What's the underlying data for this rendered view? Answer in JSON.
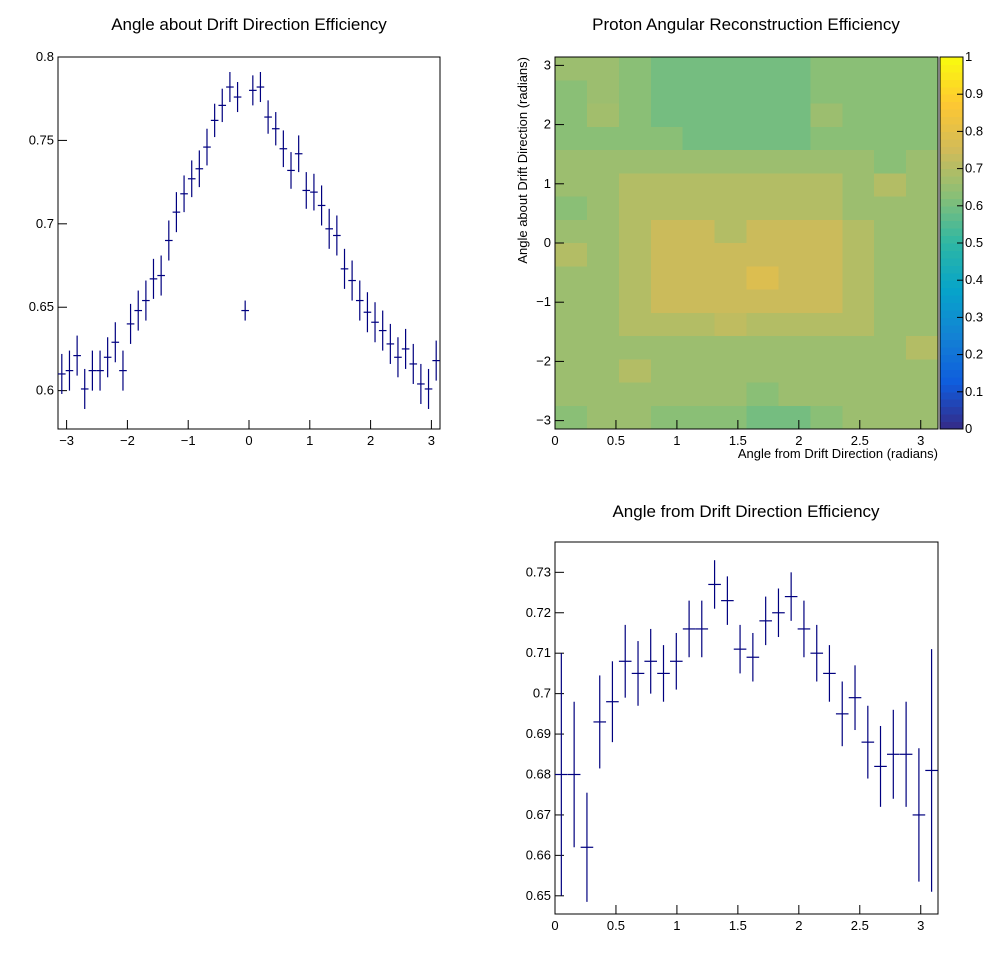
{
  "colors": {
    "marker": "#00007f",
    "frame": "#000000",
    "background": "#ffffff"
  },
  "chart_data": [
    {
      "type": "scatter",
      "title": "Angle about Drift Direction Efficiency",
      "xlabel": "",
      "ylabel": "",
      "xlim": [
        -3.14159,
        3.14159
      ],
      "ylim": [
        0.577,
        0.8
      ],
      "grid": false,
      "x_ticks": [
        -3,
        -2,
        -1,
        0,
        1,
        2,
        3
      ],
      "y_ticks": [
        0.6,
        0.65,
        0.7,
        0.75,
        0.8
      ],
      "y_tick_labels": [
        "0.6",
        "0.65",
        "0.7",
        "0.75",
        "0.8"
      ],
      "points": [
        {
          "x": -3.079,
          "y": 0.61,
          "err": 0.012
        },
        {
          "x": -2.953,
          "y": 0.612,
          "err": 0.012
        },
        {
          "x": -2.827,
          "y": 0.621,
          "err": 0.012
        },
        {
          "x": -2.702,
          "y": 0.601,
          "err": 0.012
        },
        {
          "x": -2.576,
          "y": 0.612,
          "err": 0.012
        },
        {
          "x": -2.45,
          "y": 0.612,
          "err": 0.012
        },
        {
          "x": -2.325,
          "y": 0.62,
          "err": 0.012
        },
        {
          "x": -2.199,
          "y": 0.629,
          "err": 0.012
        },
        {
          "x": -2.073,
          "y": 0.612,
          "err": 0.012
        },
        {
          "x": -1.948,
          "y": 0.64,
          "err": 0.012
        },
        {
          "x": -1.822,
          "y": 0.648,
          "err": 0.012
        },
        {
          "x": -1.696,
          "y": 0.654,
          "err": 0.012
        },
        {
          "x": -1.571,
          "y": 0.667,
          "err": 0.012
        },
        {
          "x": -1.445,
          "y": 0.669,
          "err": 0.012
        },
        {
          "x": -1.319,
          "y": 0.69,
          "err": 0.012
        },
        {
          "x": -1.194,
          "y": 0.707,
          "err": 0.012
        },
        {
          "x": -1.068,
          "y": 0.718,
          "err": 0.011
        },
        {
          "x": -0.942,
          "y": 0.727,
          "err": 0.011
        },
        {
          "x": -0.817,
          "y": 0.733,
          "err": 0.011
        },
        {
          "x": -0.691,
          "y": 0.746,
          "err": 0.011
        },
        {
          "x": -0.565,
          "y": 0.762,
          "err": 0.01
        },
        {
          "x": -0.44,
          "y": 0.771,
          "err": 0.01
        },
        {
          "x": -0.314,
          "y": 0.782,
          "err": 0.009
        },
        {
          "x": -0.188,
          "y": 0.776,
          "err": 0.009
        },
        {
          "x": -0.063,
          "y": 0.648,
          "err": 0.006
        },
        {
          "x": 0.063,
          "y": 0.78,
          "err": 0.009
        },
        {
          "x": 0.188,
          "y": 0.782,
          "err": 0.009
        },
        {
          "x": 0.314,
          "y": 0.764,
          "err": 0.01
        },
        {
          "x": 0.44,
          "y": 0.757,
          "err": 0.01
        },
        {
          "x": 0.565,
          "y": 0.745,
          "err": 0.011
        },
        {
          "x": 0.691,
          "y": 0.732,
          "err": 0.011
        },
        {
          "x": 0.817,
          "y": 0.742,
          "err": 0.011
        },
        {
          "x": 0.942,
          "y": 0.72,
          "err": 0.011
        },
        {
          "x": 1.068,
          "y": 0.719,
          "err": 0.011
        },
        {
          "x": 1.194,
          "y": 0.711,
          "err": 0.012
        },
        {
          "x": 1.319,
          "y": 0.697,
          "err": 0.012
        },
        {
          "x": 1.445,
          "y": 0.693,
          "err": 0.012
        },
        {
          "x": 1.571,
          "y": 0.673,
          "err": 0.012
        },
        {
          "x": 1.696,
          "y": 0.666,
          "err": 0.012
        },
        {
          "x": 1.822,
          "y": 0.654,
          "err": 0.012
        },
        {
          "x": 1.948,
          "y": 0.647,
          "err": 0.012
        },
        {
          "x": 2.073,
          "y": 0.641,
          "err": 0.012
        },
        {
          "x": 2.199,
          "y": 0.636,
          "err": 0.012
        },
        {
          "x": 2.325,
          "y": 0.628,
          "err": 0.012
        },
        {
          "x": 2.45,
          "y": 0.62,
          "err": 0.012
        },
        {
          "x": 2.576,
          "y": 0.625,
          "err": 0.012
        },
        {
          "x": 2.702,
          "y": 0.616,
          "err": 0.012
        },
        {
          "x": 2.827,
          "y": 0.604,
          "err": 0.012
        },
        {
          "x": 2.953,
          "y": 0.601,
          "err": 0.012
        },
        {
          "x": 3.079,
          "y": 0.618,
          "err": 0.012
        }
      ]
    },
    {
      "type": "heatmap",
      "title": "Proton Angular Reconstruction Efficiency",
      "xlabel": "Angle from Drift Direction (radians)",
      "ylabel": "Angle about Drift Direction (radians)",
      "xlim": [
        0,
        3.14159
      ],
      "ylim": [
        -3.14159,
        3.14159
      ],
      "x_ticks": [
        0,
        0.5,
        1,
        1.5,
        2,
        2.5,
        3
      ],
      "y_ticks": [
        -3,
        -2,
        -1,
        0,
        1,
        2,
        3
      ],
      "y_tick_labels": [
        "−3",
        "−2",
        "−1",
        "0",
        "1",
        "2",
        "3"
      ],
      "z_range": [
        0,
        1
      ],
      "z_ticks": [
        0,
        0.1,
        0.2,
        0.3,
        0.4,
        0.5,
        0.6,
        0.7,
        0.8,
        0.9,
        1
      ],
      "nx": 12,
      "ny": 16,
      "z_rows_top_to_bottom": [
        [
          0.66,
          0.66,
          0.63,
          0.6,
          0.6,
          0.6,
          0.6,
          0.6,
          0.63,
          0.63,
          0.63,
          0.63
        ],
        [
          0.63,
          0.66,
          0.63,
          0.6,
          0.6,
          0.6,
          0.6,
          0.6,
          0.63,
          0.63,
          0.63,
          0.63
        ],
        [
          0.63,
          0.67,
          0.63,
          0.6,
          0.6,
          0.6,
          0.6,
          0.6,
          0.66,
          0.63,
          0.63,
          0.63
        ],
        [
          0.63,
          0.63,
          0.63,
          0.63,
          0.6,
          0.6,
          0.6,
          0.6,
          0.63,
          0.63,
          0.63,
          0.63
        ],
        [
          0.66,
          0.66,
          0.66,
          0.66,
          0.66,
          0.66,
          0.66,
          0.66,
          0.66,
          0.66,
          0.63,
          0.66
        ],
        [
          0.66,
          0.66,
          0.7,
          0.7,
          0.7,
          0.7,
          0.7,
          0.7,
          0.7,
          0.66,
          0.7,
          0.66
        ],
        [
          0.63,
          0.66,
          0.7,
          0.7,
          0.7,
          0.7,
          0.7,
          0.7,
          0.7,
          0.66,
          0.66,
          0.66
        ],
        [
          0.66,
          0.66,
          0.7,
          0.74,
          0.74,
          0.7,
          0.74,
          0.74,
          0.74,
          0.7,
          0.66,
          0.66
        ],
        [
          0.7,
          0.66,
          0.7,
          0.74,
          0.74,
          0.74,
          0.74,
          0.74,
          0.74,
          0.7,
          0.66,
          0.66
        ],
        [
          0.66,
          0.66,
          0.7,
          0.74,
          0.74,
          0.74,
          0.78,
          0.74,
          0.74,
          0.7,
          0.66,
          0.66
        ],
        [
          0.66,
          0.66,
          0.7,
          0.74,
          0.74,
          0.74,
          0.74,
          0.74,
          0.74,
          0.7,
          0.66,
          0.66
        ],
        [
          0.66,
          0.66,
          0.7,
          0.7,
          0.7,
          0.72,
          0.7,
          0.7,
          0.7,
          0.7,
          0.66,
          0.66
        ],
        [
          0.66,
          0.66,
          0.66,
          0.66,
          0.66,
          0.66,
          0.66,
          0.66,
          0.66,
          0.66,
          0.66,
          0.7
        ],
        [
          0.66,
          0.66,
          0.7,
          0.66,
          0.66,
          0.66,
          0.66,
          0.66,
          0.66,
          0.66,
          0.66,
          0.66
        ],
        [
          0.66,
          0.66,
          0.66,
          0.66,
          0.66,
          0.66,
          0.63,
          0.66,
          0.66,
          0.66,
          0.66,
          0.66
        ],
        [
          0.63,
          0.66,
          0.66,
          0.63,
          0.63,
          0.63,
          0.6,
          0.6,
          0.63,
          0.66,
          0.66,
          0.66
        ]
      ]
    },
    {
      "type": "scatter",
      "title": "Angle from Drift Direction Efficiency",
      "xlabel": "",
      "ylabel": "",
      "xlim": [
        0,
        3.14159
      ],
      "ylim": [
        0.6455,
        0.7375
      ],
      "grid": false,
      "x_ticks": [
        0,
        0.5,
        1,
        1.5,
        2,
        2.5,
        3
      ],
      "y_ticks": [
        0.65,
        0.66,
        0.67,
        0.68,
        0.69,
        0.7,
        0.71,
        0.72,
        0.73
      ],
      "y_tick_labels": [
        "0.65",
        "0.66",
        "0.67",
        "0.68",
        "0.69",
        "0.7",
        "0.71",
        "0.72",
        "0.73"
      ],
      "points": [
        {
          "x": 0.052,
          "y": 0.68,
          "err": 0.03
        },
        {
          "x": 0.157,
          "y": 0.68,
          "err": 0.018
        },
        {
          "x": 0.262,
          "y": 0.662,
          "err": 0.0135
        },
        {
          "x": 0.367,
          "y": 0.693,
          "err": 0.0115
        },
        {
          "x": 0.471,
          "y": 0.698,
          "err": 0.01
        },
        {
          "x": 0.576,
          "y": 0.708,
          "err": 0.009
        },
        {
          "x": 0.681,
          "y": 0.705,
          "err": 0.008
        },
        {
          "x": 0.785,
          "y": 0.708,
          "err": 0.008
        },
        {
          "x": 0.89,
          "y": 0.705,
          "err": 0.007
        },
        {
          "x": 0.995,
          "y": 0.708,
          "err": 0.007
        },
        {
          "x": 1.1,
          "y": 0.716,
          "err": 0.007
        },
        {
          "x": 1.204,
          "y": 0.716,
          "err": 0.007
        },
        {
          "x": 1.309,
          "y": 0.727,
          "err": 0.006
        },
        {
          "x": 1.414,
          "y": 0.723,
          "err": 0.006
        },
        {
          "x": 1.518,
          "y": 0.711,
          "err": 0.006
        },
        {
          "x": 1.623,
          "y": 0.709,
          "err": 0.006
        },
        {
          "x": 1.728,
          "y": 0.718,
          "err": 0.006
        },
        {
          "x": 1.833,
          "y": 0.72,
          "err": 0.006
        },
        {
          "x": 1.937,
          "y": 0.724,
          "err": 0.006
        },
        {
          "x": 2.042,
          "y": 0.716,
          "err": 0.007
        },
        {
          "x": 2.147,
          "y": 0.71,
          "err": 0.007
        },
        {
          "x": 2.251,
          "y": 0.705,
          "err": 0.007
        },
        {
          "x": 2.356,
          "y": 0.695,
          "err": 0.008
        },
        {
          "x": 2.461,
          "y": 0.699,
          "err": 0.008
        },
        {
          "x": 2.566,
          "y": 0.688,
          "err": 0.009
        },
        {
          "x": 2.67,
          "y": 0.682,
          "err": 0.01
        },
        {
          "x": 2.775,
          "y": 0.685,
          "err": 0.011
        },
        {
          "x": 2.88,
          "y": 0.685,
          "err": 0.013
        },
        {
          "x": 2.985,
          "y": 0.67,
          "err": 0.0165
        },
        {
          "x": 3.089,
          "y": 0.681,
          "err": 0.03
        }
      ]
    }
  ]
}
